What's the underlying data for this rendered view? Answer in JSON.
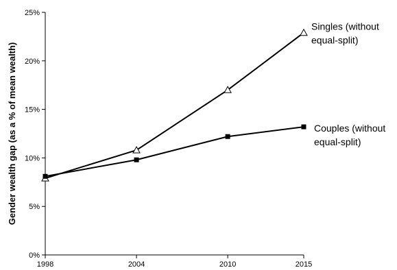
{
  "chart_data": {
    "type": "line",
    "title": "",
    "xlabel": "",
    "ylabel": "Gender wealth gap (as a % of mean wealth)",
    "x": [
      1998,
      2004,
      2010,
      2015
    ],
    "x_tick_labels": [
      "1998",
      "2004",
      "2010",
      "2015"
    ],
    "ylim": [
      0,
      25
    ],
    "y_ticks": [
      0,
      5,
      10,
      15,
      20,
      25
    ],
    "y_tick_labels": [
      "0%",
      "5%",
      "10%",
      "15%",
      "20%",
      "25%"
    ],
    "grid": false,
    "legend": "none",
    "series": [
      {
        "name_lines": [
          "Singles (without",
          "equal-split)"
        ],
        "marker": "triangle-open",
        "color": "#000000",
        "values": [
          7.9,
          10.8,
          17.0,
          22.9
        ]
      },
      {
        "name_lines": [
          "Couples (without",
          "equal-split)"
        ],
        "marker": "square-filled",
        "color": "#000000",
        "values": [
          8.1,
          9.8,
          12.2,
          13.2
        ]
      }
    ]
  }
}
